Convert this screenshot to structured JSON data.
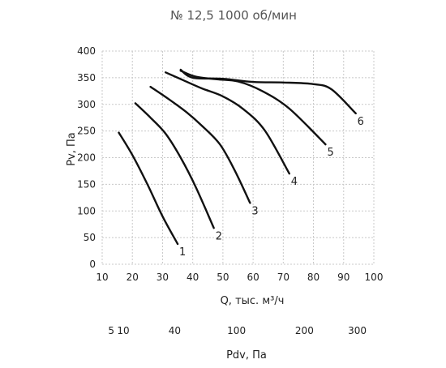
{
  "chart_data": {
    "type": "line",
    "title": "№ 12,5 1000 об/мин",
    "xlabel": "Q, тыс. м³/ч",
    "ylabel": "Pv, Па",
    "xlim": [
      10,
      100
    ],
    "ylim": [
      0,
      400
    ],
    "xticks": [
      10,
      20,
      30,
      40,
      50,
      60,
      70,
      80,
      90,
      100
    ],
    "yticks": [
      0,
      50,
      100,
      150,
      200,
      250,
      300,
      350,
      400
    ],
    "grid": true,
    "series": [
      {
        "name": "1",
        "points": [
          [
            15.5,
            247
          ],
          [
            20,
            205
          ],
          [
            25,
            150
          ],
          [
            30,
            90
          ],
          [
            35,
            38
          ]
        ]
      },
      {
        "name": "2",
        "points": [
          [
            21,
            302
          ],
          [
            26,
            275
          ],
          [
            31,
            245
          ],
          [
            36,
            200
          ],
          [
            41,
            145
          ],
          [
            47,
            68
          ]
        ]
      },
      {
        "name": "3",
        "points": [
          [
            26,
            333
          ],
          [
            32,
            310
          ],
          [
            38,
            285
          ],
          [
            43,
            260
          ],
          [
            49,
            225
          ],
          [
            54,
            175
          ],
          [
            59,
            115
          ]
        ]
      },
      {
        "name": "4",
        "points": [
          [
            31,
            360
          ],
          [
            37,
            345
          ],
          [
            43,
            330
          ],
          [
            50,
            315
          ],
          [
            57,
            290
          ],
          [
            64,
            250
          ],
          [
            72,
            170
          ]
        ]
      },
      {
        "name": "5",
        "points": [
          [
            36,
            363
          ],
          [
            41,
            352
          ],
          [
            48,
            347
          ],
          [
            55,
            343
          ],
          [
            63,
            325
          ],
          [
            72,
            292
          ],
          [
            84,
            225
          ]
        ]
      },
      {
        "name": "6",
        "points": [
          [
            36,
            365
          ],
          [
            40,
            350
          ],
          [
            50,
            348
          ],
          [
            60,
            342
          ],
          [
            70,
            341
          ],
          [
            80,
            338
          ],
          [
            86,
            328
          ],
          [
            94,
            283
          ]
        ]
      }
    ],
    "secondary_axis": {
      "label": "Pdv, Па",
      "ticks": [
        {
          "label": "5",
          "q": 13
        },
        {
          "label": "10",
          "q": 17
        },
        {
          "label": "40",
          "q": 34
        },
        {
          "label": "100",
          "q": 54.5
        },
        {
          "label": "200",
          "q": 77
        },
        {
          "label": "300",
          "q": 94.5
        }
      ]
    }
  }
}
